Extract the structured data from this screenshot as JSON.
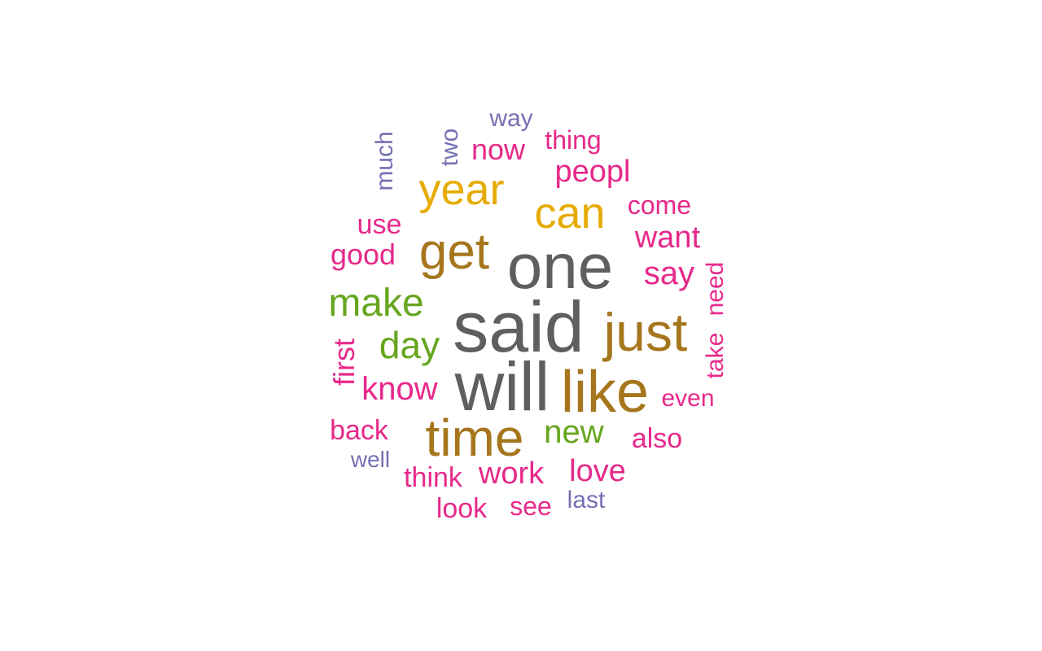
{
  "colors": {
    "dark_gray": "#5f5f5f",
    "olive_brown": "#a6761d",
    "gold": "#e6ab02",
    "green": "#66a61e",
    "magenta": "#e7298a",
    "purple": "#7570b3"
  },
  "words": [
    {
      "text": "said",
      "color": "#5f5f5f"
    },
    {
      "text": "one",
      "color": "#5f5f5f"
    },
    {
      "text": "will",
      "color": "#5f5f5f"
    },
    {
      "text": "like",
      "color": "#a6761d"
    },
    {
      "text": "just",
      "color": "#a6761d"
    },
    {
      "text": "get",
      "color": "#a6761d"
    },
    {
      "text": "time",
      "color": "#a6761d"
    },
    {
      "text": "year",
      "color": "#e6ab02"
    },
    {
      "text": "can",
      "color": "#e6ab02"
    },
    {
      "text": "make",
      "color": "#66a61e"
    },
    {
      "text": "day",
      "color": "#66a61e"
    },
    {
      "text": "new",
      "color": "#66a61e"
    },
    {
      "text": "know",
      "color": "#e7298a"
    },
    {
      "text": "peopl",
      "color": "#e7298a"
    },
    {
      "text": "want",
      "color": "#e7298a"
    },
    {
      "text": "say",
      "color": "#e7298a"
    },
    {
      "text": "now",
      "color": "#e7298a"
    },
    {
      "text": "good",
      "color": "#e7298a"
    },
    {
      "text": "use",
      "color": "#e7298a"
    },
    {
      "text": "come",
      "color": "#e7298a"
    },
    {
      "text": "thing",
      "color": "#e7298a"
    },
    {
      "text": "work",
      "color": "#e7298a"
    },
    {
      "text": "love",
      "color": "#e7298a"
    },
    {
      "text": "back",
      "color": "#e7298a"
    },
    {
      "text": "also",
      "color": "#e7298a"
    },
    {
      "text": "even",
      "color": "#e7298a"
    },
    {
      "text": "think",
      "color": "#e7298a"
    },
    {
      "text": "first",
      "color": "#e7298a"
    },
    {
      "text": "take",
      "color": "#e7298a"
    },
    {
      "text": "need",
      "color": "#e7298a"
    },
    {
      "text": "look",
      "color": "#e7298a"
    },
    {
      "text": "see",
      "color": "#e7298a"
    },
    {
      "text": "way",
      "color": "#7570b3"
    },
    {
      "text": "much",
      "color": "#7570b3"
    },
    {
      "text": "two",
      "color": "#7570b3"
    },
    {
      "text": "well",
      "color": "#7570b3"
    },
    {
      "text": "last",
      "color": "#7570b3"
    }
  ]
}
